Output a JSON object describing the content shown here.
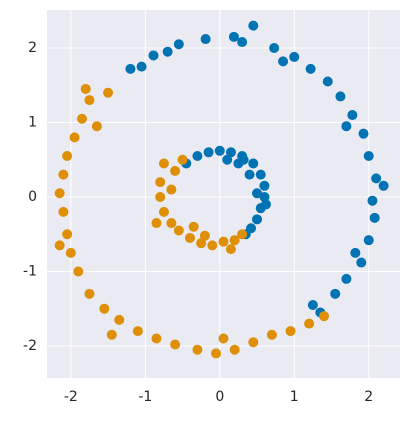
{
  "chart_data": {
    "type": "scatter",
    "xlim": [
      -2.32,
      2.42
    ],
    "ylim": [
      -2.43,
      2.51
    ],
    "xticks": [
      -2,
      -1,
      0,
      1,
      2
    ],
    "yticks": [
      -2,
      -1,
      0,
      1,
      2
    ],
    "grid": true,
    "series": [
      {
        "color": "#0173b2",
        "x": [
          -1.2,
          -0.89,
          -0.55,
          -0.19,
          0.19,
          0.45,
          0.73,
          1.0,
          1.22,
          1.45,
          1.62,
          1.78,
          1.93,
          2.0,
          2.1,
          2.2,
          2.08,
          2.0,
          1.9,
          1.7,
          1.55,
          1.35,
          -1.05,
          -0.7,
          0.3,
          0.85,
          1.7,
          2.05,
          1.82,
          1.25,
          -0.3,
          -0.15,
          0.0,
          0.15,
          0.3,
          0.45,
          0.55,
          0.6,
          0.6,
          0.55,
          0.5,
          0.42,
          0.35,
          -0.45,
          0.25,
          0.4,
          0.5,
          0.1,
          0.62,
          0.32
        ],
        "y": [
          1.72,
          1.9,
          2.05,
          2.12,
          2.15,
          2.3,
          2.0,
          1.88,
          1.72,
          1.55,
          1.35,
          1.1,
          0.85,
          0.55,
          0.25,
          0.15,
          -0.28,
          -0.58,
          -0.88,
          -1.1,
          -1.3,
          -1.55,
          1.75,
          1.95,
          2.08,
          1.82,
          0.95,
          -0.05,
          -0.75,
          -1.45,
          0.55,
          0.6,
          0.62,
          0.6,
          0.55,
          0.45,
          0.3,
          0.15,
          0.0,
          -0.15,
          -0.3,
          -0.42,
          -0.5,
          0.45,
          0.45,
          0.3,
          0.05,
          0.5,
          -0.1,
          0.5
        ]
      },
      {
        "color": "#de8f05",
        "x": [
          -1.5,
          -1.75,
          -1.85,
          -1.95,
          -2.05,
          -2.1,
          -2.15,
          -2.1,
          -2.05,
          -2.0,
          -1.9,
          -1.75,
          -1.55,
          -1.35,
          -1.1,
          -0.85,
          -0.6,
          -0.3,
          -0.05,
          0.2,
          0.45,
          0.7,
          0.95,
          1.2,
          1.4,
          -1.8,
          -1.65,
          -2.15,
          -1.45,
          0.05,
          -0.75,
          -0.8,
          -0.8,
          -0.75,
          -0.65,
          -0.55,
          -0.4,
          -0.25,
          -0.1,
          0.05,
          0.2,
          0.3,
          -0.6,
          -0.5,
          -0.65,
          -0.35,
          -0.2,
          0.15,
          -0.85
        ],
        "y": [
          1.4,
          1.3,
          1.05,
          0.8,
          0.55,
          0.3,
          0.05,
          -0.2,
          -0.5,
          -0.75,
          -1.0,
          -1.3,
          -1.5,
          -1.65,
          -1.8,
          -1.9,
          -1.98,
          -2.05,
          -2.1,
          -2.05,
          -1.95,
          -1.85,
          -1.8,
          -1.7,
          -1.6,
          1.45,
          0.95,
          -0.65,
          -1.85,
          -1.9,
          0.45,
          0.2,
          0.0,
          -0.2,
          -0.35,
          -0.45,
          -0.55,
          -0.62,
          -0.65,
          -0.6,
          -0.58,
          -0.5,
          0.35,
          0.5,
          0.1,
          -0.4,
          -0.52,
          -0.7,
          -0.35
        ]
      }
    ]
  }
}
